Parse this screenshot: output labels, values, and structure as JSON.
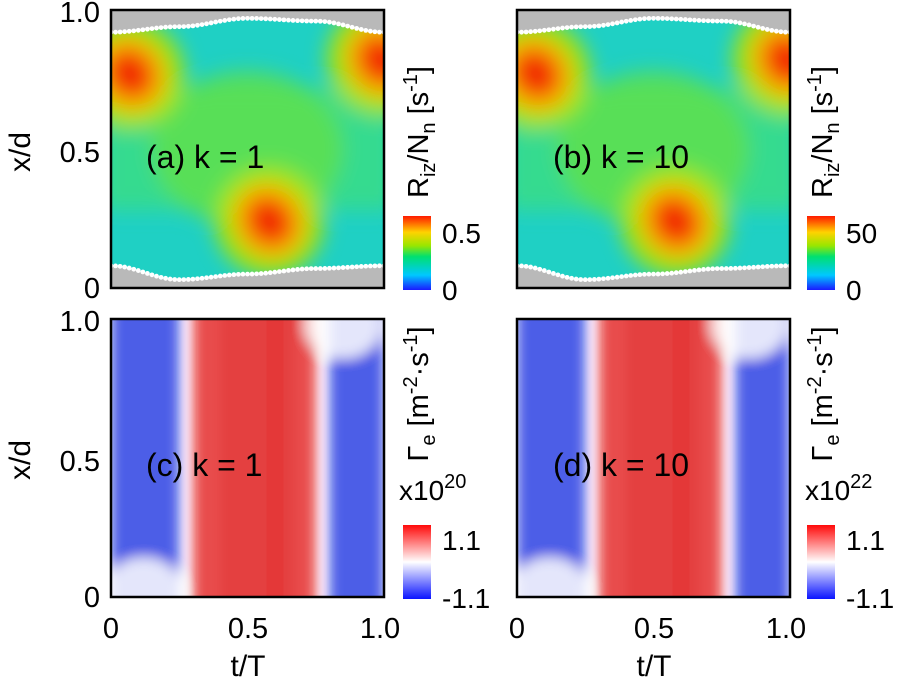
{
  "chart_data": [
    {
      "type": "heatmap",
      "panel_label": "(a) k = 1",
      "xlabel": "",
      "ylabel": "x/d",
      "xlim": [
        0,
        1
      ],
      "ylim": [
        0,
        1
      ],
      "x_ticks": [],
      "y_ticks": [
        "0",
        "0.5",
        "1.0"
      ],
      "quantity": "ionization",
      "colormap": "rainbow",
      "colorbar": {
        "title": "R_iz/N_n [s^-1]",
        "title_parts": [
          "R",
          "iz",
          "/N",
          "n",
          " [s",
          "-1",
          "]"
        ],
        "max_label": "0.5",
        "min_label": "0",
        "range": [
          0,
          0.5
        ]
      },
      "sheath_boundary": {
        "top": [
          [
            0,
            0.92
          ],
          [
            0.25,
            0.94
          ],
          [
            0.5,
            0.97
          ],
          [
            0.75,
            0.96
          ],
          [
            1.0,
            0.92
          ]
        ],
        "bottom": [
          [
            0,
            0.08
          ],
          [
            0.25,
            0.03
          ],
          [
            0.5,
            0.05
          ],
          [
            0.75,
            0.07
          ],
          [
            1.0,
            0.08
          ]
        ]
      },
      "hotspots": [
        {
          "x": 0.07,
          "y": 0.77,
          "strength": 0.5
        },
        {
          "x": 0.58,
          "y": 0.24,
          "strength": 0.5
        },
        {
          "x": 0.99,
          "y": 0.82,
          "strength": 0.45
        }
      ]
    },
    {
      "type": "heatmap",
      "panel_label": "(b) k = 10",
      "xlabel": "",
      "ylabel": "",
      "xlim": [
        0,
        1
      ],
      "ylim": [
        0,
        1
      ],
      "x_ticks": [],
      "y_ticks": [],
      "quantity": "ionization",
      "colormap": "rainbow",
      "colorbar": {
        "title": "R_iz/N_n [s^-1]",
        "title_parts": [
          "R",
          "iz",
          "/N",
          "n",
          " [s",
          "-1",
          "]"
        ],
        "max_label": "50",
        "min_label": "0",
        "range": [
          0,
          50
        ]
      },
      "sheath_boundary": {
        "top": [
          [
            0,
            0.92
          ],
          [
            0.25,
            0.94
          ],
          [
            0.5,
            0.97
          ],
          [
            0.75,
            0.96
          ],
          [
            1.0,
            0.92
          ]
        ],
        "bottom": [
          [
            0,
            0.08
          ],
          [
            0.25,
            0.03
          ],
          [
            0.5,
            0.05
          ],
          [
            0.75,
            0.07
          ],
          [
            1.0,
            0.08
          ]
        ]
      },
      "hotspots": [
        {
          "x": 0.07,
          "y": 0.77,
          "strength": 0.5
        },
        {
          "x": 0.58,
          "y": 0.24,
          "strength": 0.5
        },
        {
          "x": 0.99,
          "y": 0.82,
          "strength": 0.45
        }
      ]
    },
    {
      "type": "heatmap",
      "panel_label": "(c) k = 1",
      "xlabel": "t/T",
      "ylabel": "x/d",
      "xlim": [
        0,
        1
      ],
      "ylim": [
        0,
        1
      ],
      "x_ticks": [
        "0",
        "0.5",
        "1.0"
      ],
      "y_ticks": [
        "0",
        "0.5",
        "1.0"
      ],
      "quantity": "flux",
      "colormap": "blue-white-red",
      "colorbar": {
        "title": "Γ_e [m^-2·s^-1]",
        "title_parts": [
          "Γ",
          "e",
          " [m",
          "-2",
          "·s",
          "-1",
          "]"
        ],
        "scale": "x10^20",
        "scale_parts": [
          "x10",
          "20"
        ],
        "max_label": "1.1",
        "min_label": "-1.1",
        "range": [
          -1.1,
          1.1
        ]
      },
      "sign_bands": [
        {
          "from": 0.0,
          "to": 0.25,
          "sign": "negative"
        },
        {
          "from": 0.3,
          "to": 0.75,
          "sign": "positive"
        },
        {
          "from": 0.8,
          "to": 1.0,
          "sign": "negative"
        }
      ]
    },
    {
      "type": "heatmap",
      "panel_label": "(d) k = 10",
      "xlabel": "t/T",
      "ylabel": "",
      "xlim": [
        0,
        1
      ],
      "ylim": [
        0,
        1
      ],
      "x_ticks": [
        "0",
        "0.5",
        "1.0"
      ],
      "y_ticks": [],
      "quantity": "flux",
      "colormap": "blue-white-red",
      "colorbar": {
        "title": "Γ_e [m^-2·s^-1]",
        "title_parts": [
          "Γ",
          "e",
          " [m",
          "-2",
          "·s",
          "-1",
          "]"
        ],
        "scale": "x10^22",
        "scale_parts": [
          "x10",
          "22"
        ],
        "max_label": "1.1",
        "min_label": "-1.1",
        "range": [
          -1.1,
          1.1
        ]
      },
      "sign_bands": [
        {
          "from": 0.0,
          "to": 0.25,
          "sign": "negative"
        },
        {
          "from": 0.3,
          "to": 0.75,
          "sign": "positive"
        },
        {
          "from": 0.8,
          "to": 1.0,
          "sign": "negative"
        }
      ]
    }
  ],
  "colors": {
    "sheath_gray": "#b9b9b9",
    "boundary_dots": "#ffffff",
    "flux_positive": "#e21b1b",
    "flux_negative": "#1c2fe0"
  }
}
